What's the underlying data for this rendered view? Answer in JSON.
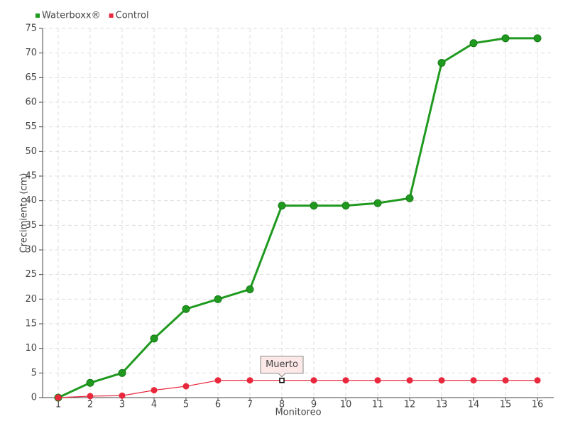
{
  "chart_data": {
    "type": "line",
    "x_label": "Monitoreo",
    "y_label": "Crecimiento (cm)",
    "categories": [
      "1",
      "2",
      "3",
      "4",
      "5",
      "6",
      "7",
      "8",
      "9",
      "10",
      "11",
      "12",
      "13",
      "14",
      "15",
      "16"
    ],
    "series": [
      {
        "name": "Waterboxx®",
        "color": "#1f9a1f",
        "values": [
          0,
          3,
          5,
          12,
          18,
          20,
          22,
          39,
          39,
          39,
          39.5,
          40.5,
          68,
          72,
          73,
          73
        ]
      },
      {
        "name": "Control",
        "color": "#e8283c",
        "values": [
          0,
          0.3,
          0.4,
          1.5,
          2.3,
          3.5,
          3.5,
          3.5,
          3.5,
          3.5,
          3.5,
          3.5,
          3.5,
          3.5,
          3.5,
          3.5
        ]
      }
    ],
    "ylim": [
      0,
      75
    ],
    "yticks": [
      0,
      5,
      10,
      15,
      20,
      25,
      30,
      35,
      40,
      45,
      50,
      55,
      60,
      65,
      70,
      75
    ],
    "grid": true,
    "legend": "top-left",
    "annotations": [
      {
        "text": "Muerto",
        "series": "Control",
        "category": "8"
      }
    ]
  }
}
